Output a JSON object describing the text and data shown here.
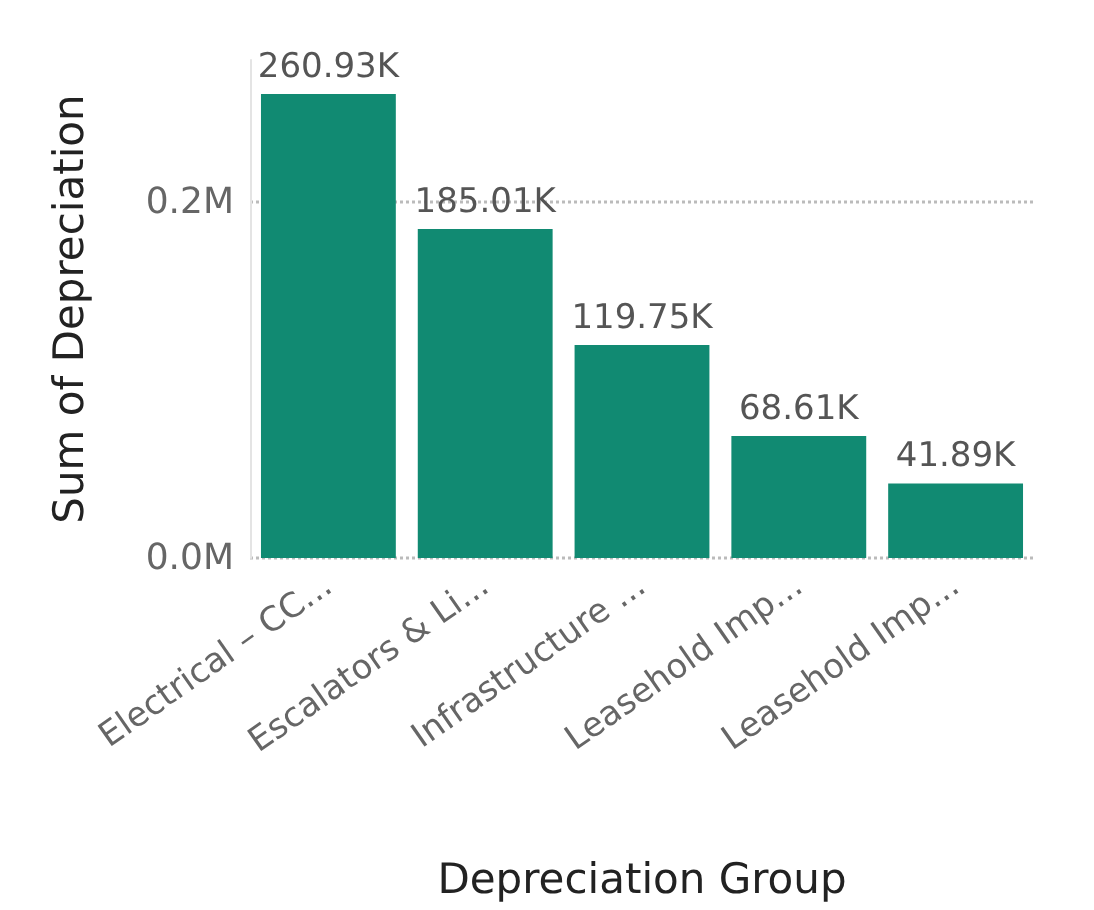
{
  "chart_data": {
    "type": "bar",
    "xlabel": "Depreciation Group",
    "ylabel": "Sum of Depreciation",
    "categories": [
      "Electrical – CC...",
      "Escalators & Li...",
      "Infrastructure ...",
      "Leasehold Imp...",
      "Leasehold Imp..."
    ],
    "values": [
      260930,
      185010,
      119750,
      68610,
      41890
    ],
    "value_labels": [
      "260.93K",
      "185.01K",
      "119.75K",
      "68.61K",
      "41.89K"
    ],
    "ylim": [
      0,
      280000
    ],
    "color": "#118a72",
    "yticks": [
      {
        "value": 0,
        "label": "0.0M"
      },
      {
        "value": 200000,
        "label": "0.2M"
      }
    ],
    "grid": "y"
  }
}
